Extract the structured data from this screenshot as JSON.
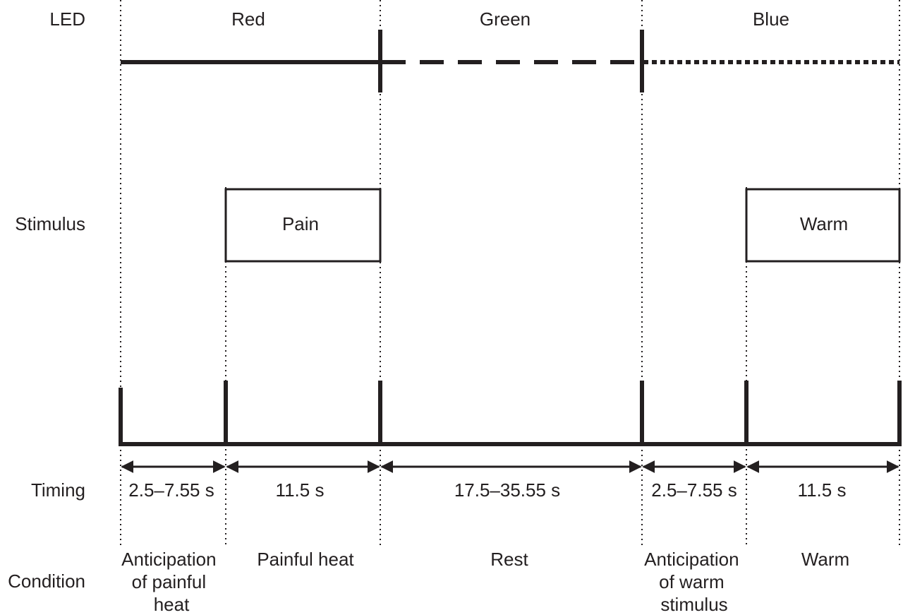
{
  "row_labels": {
    "led": "LED",
    "stimulus": "Stimulus",
    "timing": "Timing",
    "condition": "Condition"
  },
  "led_phases": [
    {
      "label": "Red",
      "line_style": "solid"
    },
    {
      "label": "Green",
      "line_style": "dashed"
    },
    {
      "label": "Blue",
      "line_style": "dotted"
    }
  ],
  "stimuli": [
    {
      "label": "Pain"
    },
    {
      "label": "Warm"
    }
  ],
  "timing_segments": [
    {
      "label": "2.5–7.55 s"
    },
    {
      "label": "11.5 s"
    },
    {
      "label": "17.5–35.55 s"
    },
    {
      "label": "2.5–7.55 s"
    },
    {
      "label": "11.5 s"
    }
  ],
  "conditions": [
    {
      "lines": [
        "Anticipation",
        "of painful",
        "heat"
      ]
    },
    {
      "lines": [
        "Painful heat"
      ]
    },
    {
      "lines": [
        "Rest"
      ]
    },
    {
      "lines": [
        "Anticipation",
        "of warm",
        "stimulus"
      ]
    },
    {
      "lines": [
        "Warm"
      ]
    }
  ],
  "colors": {
    "ink": "#231f20",
    "background": "#ffffff"
  }
}
